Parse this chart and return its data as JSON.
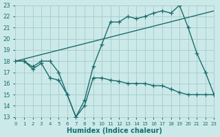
{
  "xlabel": "Humidex (Indice chaleur)",
  "background_color": "#cce9e9",
  "grid_color": "#aacece",
  "line_color": "#1a6b6b",
  "xlim": [
    0,
    23
  ],
  "ylim": [
    13,
    23
  ],
  "xticks": [
    0,
    1,
    2,
    3,
    4,
    5,
    6,
    7,
    8,
    9,
    10,
    11,
    12,
    13,
    14,
    15,
    16,
    17,
    18,
    19,
    20,
    21,
    22,
    23
  ],
  "yticks": [
    13,
    14,
    15,
    16,
    17,
    18,
    19,
    20,
    21,
    22,
    23
  ],
  "line1_x": [
    0,
    1,
    2,
    3,
    4,
    5,
    6,
    7,
    8,
    9,
    10,
    11,
    12,
    13,
    14,
    15,
    16,
    17,
    18,
    19,
    20,
    21,
    22,
    23
  ],
  "line1_y": [
    18.0,
    18.0,
    17.5,
    18.0,
    18.0,
    17.0,
    15.0,
    13.0,
    14.5,
    17.5,
    19.5,
    21.5,
    21.5,
    22.0,
    21.8,
    22.0,
    22.3,
    22.5,
    22.3,
    23.0,
    21.0,
    18.7,
    17.0,
    15.0
  ],
  "line2_x": [
    0,
    1,
    2,
    3,
    4,
    5,
    6,
    7,
    8,
    9,
    10,
    11,
    12,
    13,
    14,
    15,
    16,
    17,
    18,
    19,
    20,
    21,
    22,
    23
  ],
  "line2_y": [
    18.0,
    18.0,
    17.3,
    17.8,
    16.5,
    16.3,
    15.0,
    13.0,
    14.0,
    16.5,
    16.5,
    16.3,
    16.2,
    16.0,
    16.0,
    16.0,
    15.8,
    15.8,
    15.5,
    15.2,
    15.0,
    15.0,
    15.0,
    15.0
  ],
  "line3_x": [
    0,
    23
  ],
  "line3_y": [
    18.0,
    22.5
  ]
}
